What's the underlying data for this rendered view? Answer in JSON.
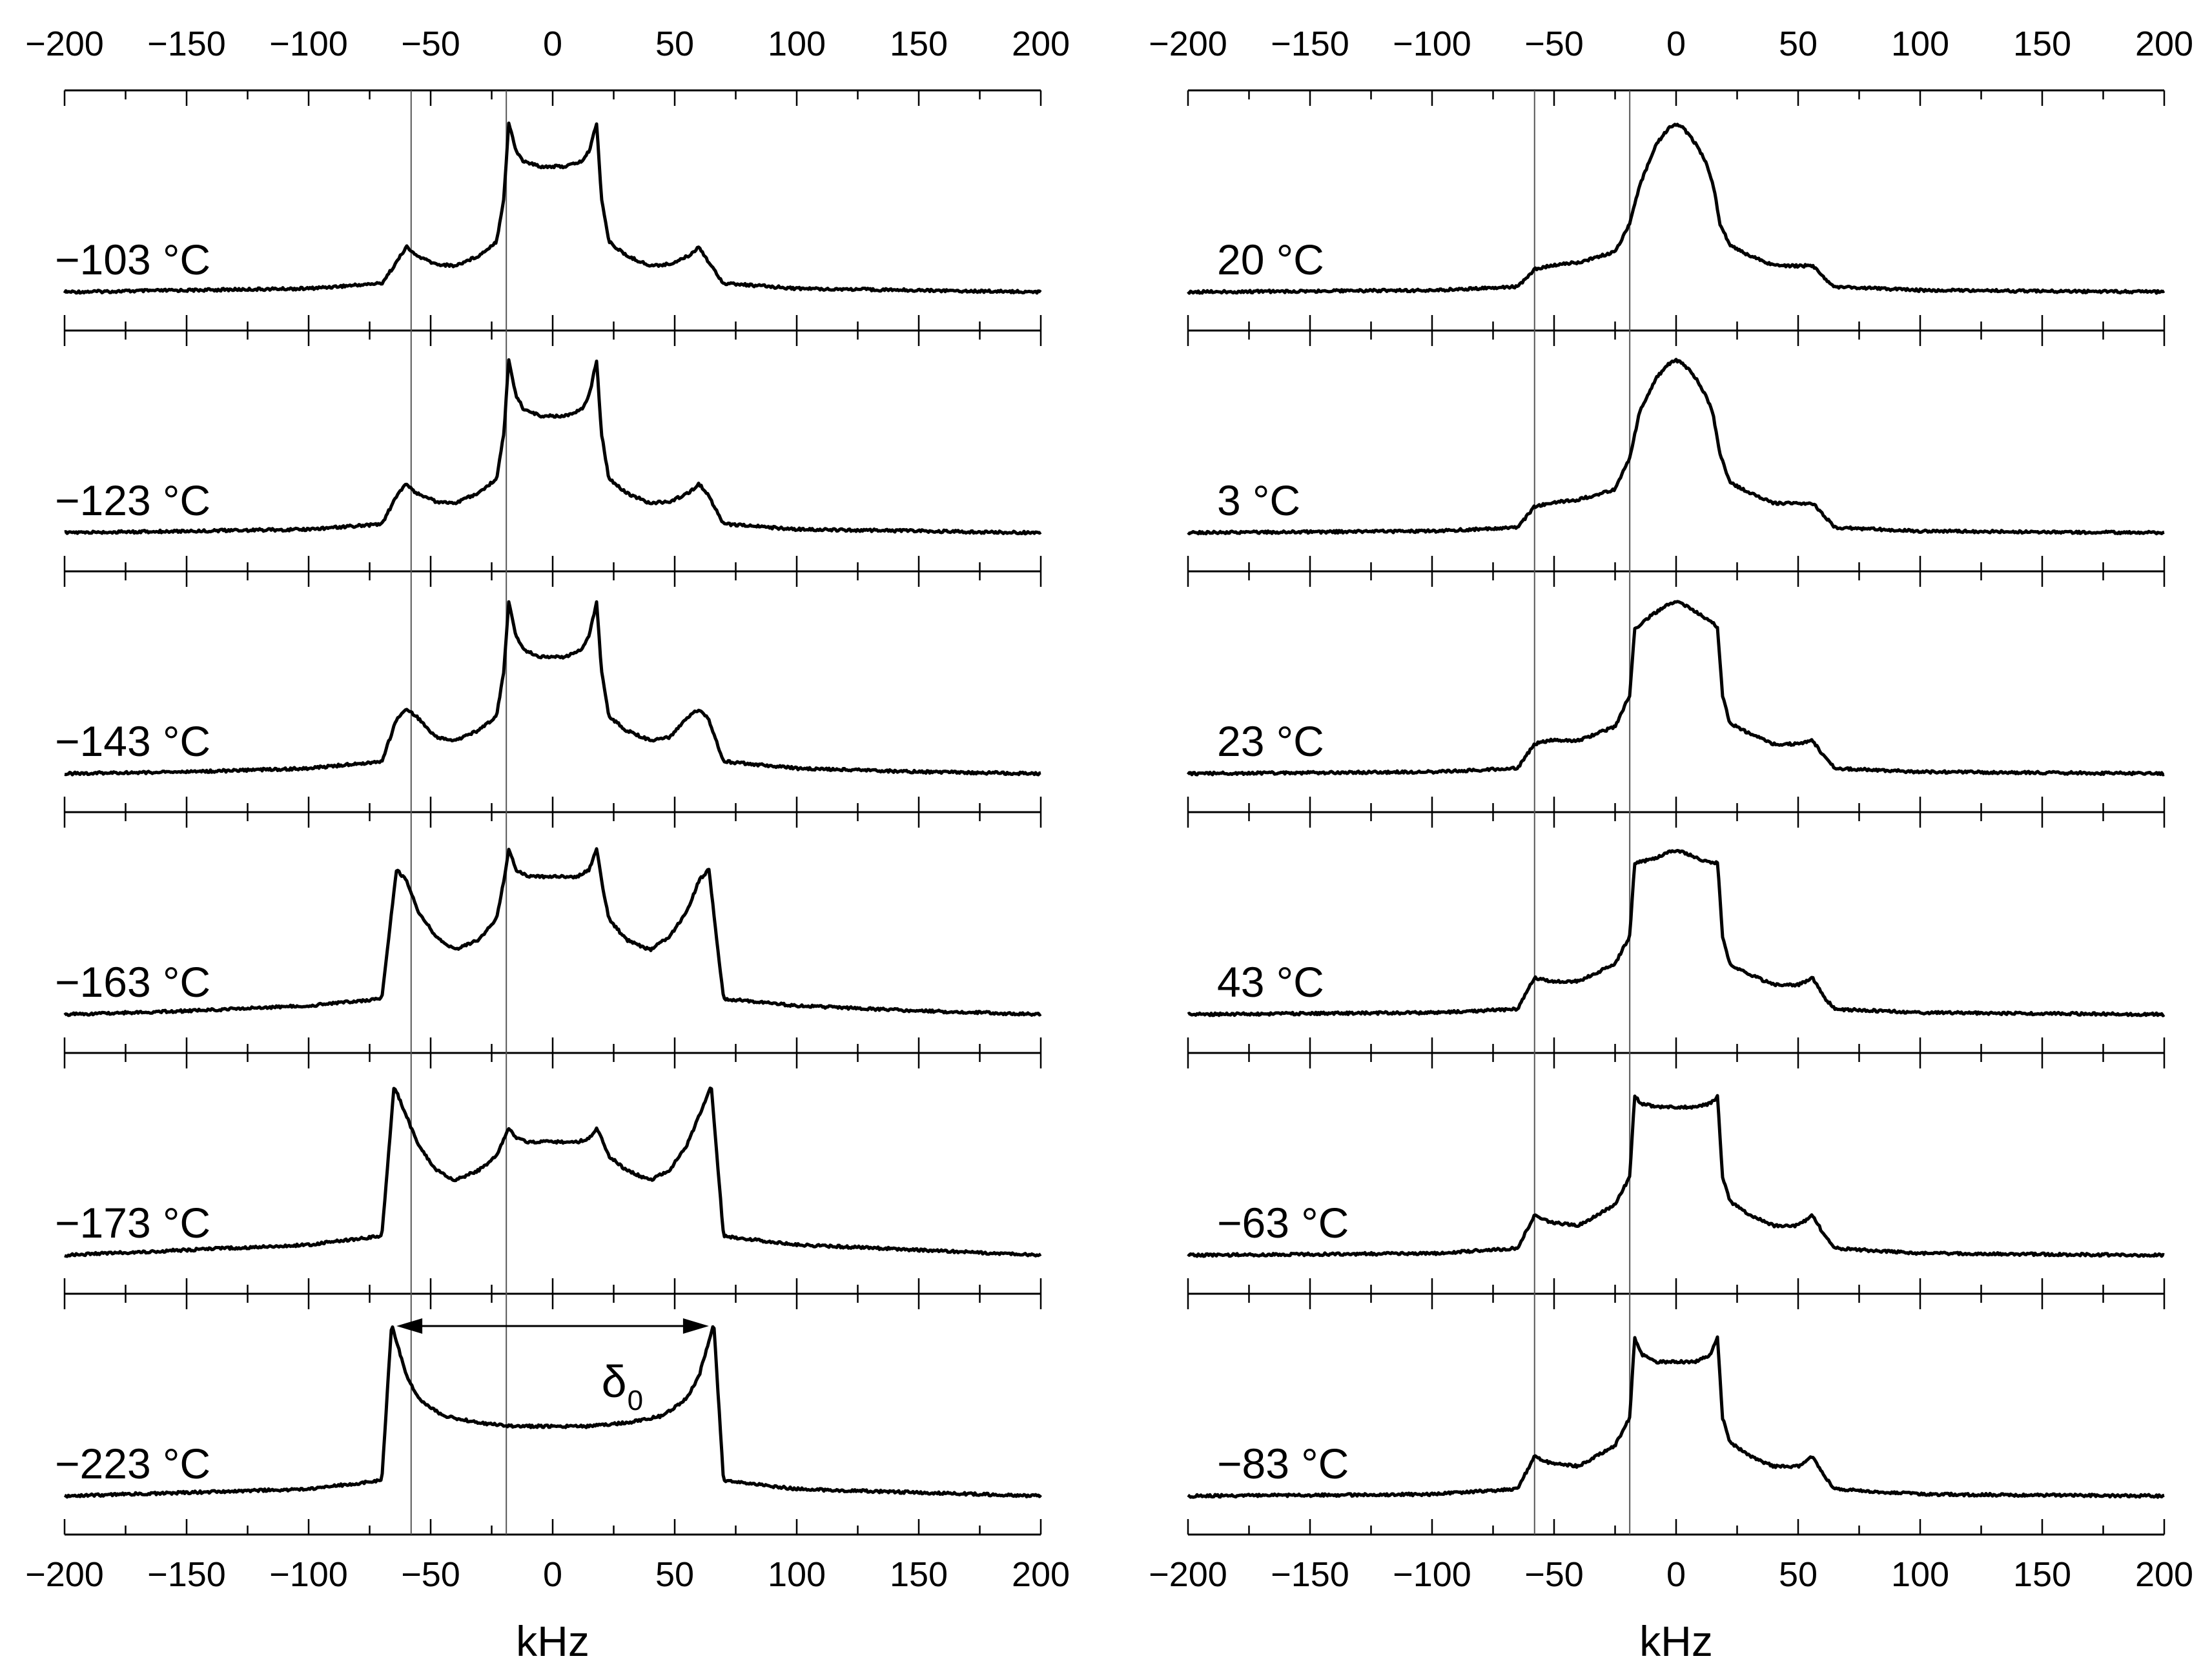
{
  "chart_data": {
    "type": "line",
    "title": "",
    "line_color": "#000000",
    "xlim": [
      -200,
      200
    ],
    "xticks": [
      -200,
      -150,
      -100,
      -50,
      0,
      50,
      100,
      150,
      200
    ],
    "xtick_labels": [
      "−200",
      "−150",
      "−100",
      "−50",
      "0",
      "50",
      "100",
      "150",
      "200"
    ],
    "minor_tick_step": 25,
    "grid": false,
    "reference_lines_khz": [
      -58,
      -19
    ],
    "panels": [
      {
        "column": "left",
        "xlabel": "kHz",
        "series": [
          {
            "name": "−103 °C",
            "label": "−103 °C",
            "x": [
              -200,
              -150,
              -100,
              -70,
              -64,
              -60,
              -56,
              -48,
              -40,
              -30,
              -23,
              -20,
              -18,
              -15,
              -12,
              -5,
              0,
              5,
              12,
              15,
              18,
              20,
              23,
              30,
              40,
              48,
              56,
              60,
              64,
              70,
              100,
              150,
              200
            ],
            "y": [
              0.01,
              0.02,
              0.03,
              0.06,
              0.18,
              0.27,
              0.22,
              0.17,
              0.16,
              0.22,
              0.3,
              0.55,
              0.98,
              0.82,
              0.76,
              0.73,
              0.73,
              0.73,
              0.76,
              0.82,
              0.98,
              0.55,
              0.3,
              0.22,
              0.16,
              0.17,
              0.22,
              0.27,
              0.18,
              0.06,
              0.03,
              0.02,
              0.01
            ]
          },
          {
            "name": "−123 °C",
            "label": "−123 °C",
            "x": [
              -200,
              -150,
              -100,
              -70,
              -64,
              -60,
              -56,
              -48,
              -40,
              -30,
              -23,
              -20,
              -18,
              -15,
              -12,
              -5,
              0,
              5,
              12,
              15,
              18,
              20,
              23,
              30,
              40,
              48,
              56,
              60,
              64,
              70,
              100,
              150,
              200
            ],
            "y": [
              0.01,
              0.02,
              0.03,
              0.06,
              0.22,
              0.29,
              0.24,
              0.19,
              0.18,
              0.24,
              0.32,
              0.58,
              1.0,
              0.8,
              0.72,
              0.68,
              0.68,
              0.68,
              0.72,
              0.8,
              1.0,
              0.58,
              0.32,
              0.24,
              0.18,
              0.19,
              0.24,
              0.29,
              0.22,
              0.06,
              0.03,
              0.02,
              0.01
            ]
          },
          {
            "name": "−143 °C",
            "label": "−143 °C",
            "x": [
              -200,
              -150,
              -100,
              -70,
              -64,
              -60,
              -56,
              -48,
              -40,
              -30,
              -23,
              -20,
              -18,
              -15,
              -12,
              -5,
              0,
              5,
              12,
              15,
              18,
              20,
              23,
              30,
              40,
              48,
              56,
              60,
              64,
              70,
              100,
              150,
              200
            ],
            "y": [
              0.01,
              0.02,
              0.04,
              0.08,
              0.32,
              0.38,
              0.34,
              0.22,
              0.2,
              0.26,
              0.34,
              0.6,
              1.0,
              0.8,
              0.72,
              0.68,
              0.68,
              0.68,
              0.72,
              0.8,
              1.0,
              0.6,
              0.34,
              0.26,
              0.2,
              0.22,
              0.34,
              0.38,
              0.32,
              0.08,
              0.04,
              0.02,
              0.01
            ]
          },
          {
            "name": "−163 °C",
            "label": "−163 °C",
            "x": [
              -200,
              -150,
              -100,
              -70,
              -64,
              -60,
              -55,
              -48,
              -40,
              -30,
              -23,
              -20,
              -18,
              -15,
              -10,
              0,
              10,
              15,
              18,
              20,
              23,
              30,
              40,
              48,
              55,
              60,
              64,
              70,
              100,
              150,
              200
            ],
            "y": [
              0.01,
              0.03,
              0.06,
              0.1,
              0.84,
              0.78,
              0.6,
              0.46,
              0.38,
              0.44,
              0.56,
              0.78,
              0.96,
              0.84,
              0.8,
              0.8,
              0.8,
              0.84,
              0.96,
              0.78,
              0.56,
              0.44,
              0.38,
              0.46,
              0.6,
              0.78,
              0.84,
              0.1,
              0.06,
              0.03,
              0.01
            ]
          },
          {
            "name": "−173 °C",
            "label": "−173 °C",
            "x": [
              -200,
              -150,
              -100,
              -70,
              -65,
              -62,
              -55,
              -48,
              -40,
              -30,
              -23,
              -20,
              -18,
              -15,
              -10,
              0,
              10,
              15,
              18,
              20,
              23,
              30,
              40,
              48,
              55,
              62,
              65,
              70,
              100,
              150,
              200
            ],
            "y": [
              0.01,
              0.04,
              0.07,
              0.12,
              0.98,
              0.88,
              0.64,
              0.5,
              0.44,
              0.5,
              0.58,
              0.68,
              0.74,
              0.68,
              0.66,
              0.66,
              0.66,
              0.68,
              0.74,
              0.68,
              0.58,
              0.5,
              0.44,
              0.5,
              0.64,
              0.88,
              0.98,
              0.12,
              0.07,
              0.04,
              0.01
            ]
          },
          {
            "name": "−223 °C",
            "label": "−223 °C",
            "x": [
              -200,
              -150,
              -100,
              -70,
              -66,
              -64,
              -60,
              -55,
              -45,
              -30,
              -15,
              0,
              15,
              30,
              45,
              55,
              60,
              64,
              66,
              70,
              100,
              150,
              200
            ],
            "y": [
              0.01,
              0.03,
              0.05,
              0.1,
              1.0,
              0.9,
              0.7,
              0.57,
              0.47,
              0.43,
              0.41,
              0.41,
              0.41,
              0.43,
              0.47,
              0.57,
              0.7,
              0.9,
              1.0,
              0.1,
              0.05,
              0.03,
              0.01
            ]
          }
        ],
        "annotation": {
          "text": "δ",
          "subscript": "0",
          "panel": "−223 °C",
          "from_khz": -64,
          "to_khz": 64
        }
      },
      {
        "column": "right",
        "xlabel": "kHz",
        "series": [
          {
            "name": "20 °C",
            "label": "20 °C",
            "x": [
              -200,
              -100,
              -65,
              -58,
              -52,
              -40,
              -25,
              -19,
              -15,
              -8,
              -3,
              0,
              3,
              8,
              12,
              15,
              18,
              22,
              30,
              40,
              50,
              56,
              60,
              65,
              100,
              200
            ],
            "y": [
              0.01,
              0.02,
              0.04,
              0.14,
              0.16,
              0.18,
              0.24,
              0.4,
              0.62,
              0.86,
              0.95,
              0.97,
              0.95,
              0.86,
              0.76,
              0.64,
              0.4,
              0.28,
              0.22,
              0.16,
              0.16,
              0.16,
              0.1,
              0.04,
              0.02,
              0.01
            ]
          },
          {
            "name": "3 °C",
            "label": "3 °C",
            "x": [
              -200,
              -100,
              -65,
              -58,
              -52,
              -40,
              -25,
              -19,
              -15,
              -8,
              -3,
              0,
              3,
              8,
              12,
              15,
              18,
              22,
              30,
              40,
              50,
              56,
              60,
              65,
              100,
              200
            ],
            "y": [
              0.01,
              0.02,
              0.04,
              0.16,
              0.18,
              0.2,
              0.26,
              0.44,
              0.7,
              0.9,
              0.98,
              1.0,
              0.98,
              0.9,
              0.8,
              0.7,
              0.46,
              0.3,
              0.24,
              0.18,
              0.18,
              0.18,
              0.12,
              0.04,
              0.02,
              0.01
            ]
          },
          {
            "name": "23 °C",
            "label": "23 °C",
            "x": [
              -200,
              -100,
              -65,
              -58,
              -52,
              -40,
              -25,
              -19,
              -17,
              -10,
              -3,
              0,
              3,
              10,
              15,
              17,
              19,
              22,
              30,
              40,
              50,
              56,
              60,
              65,
              100,
              200
            ],
            "y": [
              0.01,
              0.02,
              0.04,
              0.18,
              0.2,
              0.2,
              0.28,
              0.46,
              0.84,
              0.92,
              0.98,
              1.0,
              0.98,
              0.92,
              0.88,
              0.84,
              0.46,
              0.3,
              0.24,
              0.18,
              0.18,
              0.2,
              0.12,
              0.04,
              0.02,
              0.01
            ]
          },
          {
            "name": "43 °C",
            "label": "43 °C",
            "x": [
              -200,
              -100,
              -65,
              -58,
              -52,
              -40,
              -25,
              -19,
              -17,
              -10,
              -3,
              0,
              3,
              10,
              15,
              17,
              19,
              22,
              30,
              40,
              50,
              56,
              60,
              65,
              100,
              200
            ],
            "y": [
              0.01,
              0.02,
              0.04,
              0.22,
              0.2,
              0.2,
              0.3,
              0.46,
              0.88,
              0.9,
              0.94,
              0.95,
              0.94,
              0.9,
              0.88,
              0.88,
              0.46,
              0.3,
              0.24,
              0.18,
              0.18,
              0.22,
              0.12,
              0.04,
              0.02,
              0.01
            ]
          },
          {
            "name": "−63 °C",
            "label": "−63 °C",
            "x": [
              -200,
              -100,
              -65,
              -58,
              -52,
              -40,
              -25,
              -19,
              -17,
              -14,
              -8,
              0,
              8,
              14,
              17,
              19,
              22,
              30,
              40,
              50,
              56,
              60,
              65,
              100,
              200
            ],
            "y": [
              0.01,
              0.02,
              0.05,
              0.24,
              0.2,
              0.18,
              0.3,
              0.46,
              0.92,
              0.88,
              0.86,
              0.86,
              0.86,
              0.88,
              0.92,
              0.46,
              0.32,
              0.24,
              0.18,
              0.18,
              0.24,
              0.14,
              0.05,
              0.02,
              0.01
            ]
          },
          {
            "name": "−83 °C",
            "label": "−83 °C",
            "x": [
              -200,
              -100,
              -65,
              -58,
              -52,
              -40,
              -25,
              -19,
              -17,
              -14,
              -8,
              0,
              8,
              14,
              17,
              19,
              22,
              30,
              40,
              50,
              56,
              60,
              65,
              100,
              200
            ],
            "y": [
              0.01,
              0.02,
              0.05,
              0.24,
              0.2,
              0.18,
              0.3,
              0.46,
              0.92,
              0.82,
              0.78,
              0.78,
              0.78,
              0.82,
              0.92,
              0.46,
              0.32,
              0.24,
              0.18,
              0.18,
              0.24,
              0.14,
              0.05,
              0.02,
              0.01
            ]
          }
        ]
      }
    ]
  }
}
